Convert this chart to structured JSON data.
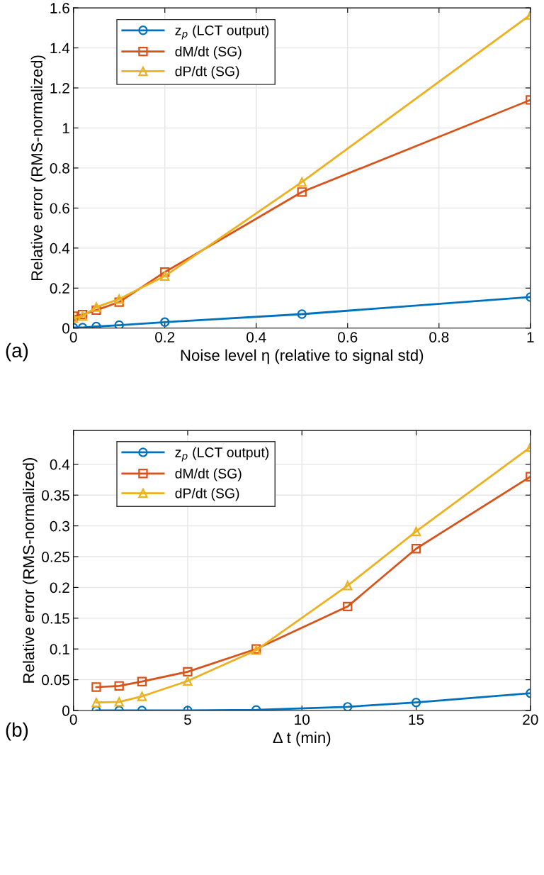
{
  "chart_data": [
    {
      "type": "line",
      "xlabel": "Noise level η (relative to signal std)",
      "ylabel": "Relative error (RMS-normalized)",
      "x": [
        0,
        0.02,
        0.05,
        0.1,
        0.2,
        0.5,
        1
      ],
      "xlim": [
        0,
        1
      ],
      "ylim": [
        0,
        1.6
      ],
      "xticks": [
        0,
        0.2,
        0.4,
        0.6,
        0.8,
        1
      ],
      "yticks": [
        0,
        0.2,
        0.4,
        0.6,
        0.8,
        1,
        1.2,
        1.4,
        1.6
      ],
      "grid": true,
      "legend": "top left",
      "line_style": "solid",
      "annotations": [
        "(a)"
      ],
      "series": [
        {
          "name": "z$_{p}$ (LCT output)",
          "color": "#0072bd",
          "marker": "circle",
          "values": [
            0.003,
            0.003,
            0.008,
            0.015,
            0.03,
            0.07,
            0.155
          ]
        },
        {
          "name": "dM/dt (SG)",
          "color": "#d95319",
          "marker": "square",
          "values": [
            0.06,
            0.068,
            0.09,
            0.13,
            0.28,
            0.68,
            1.14
          ]
        },
        {
          "name": "dP/dt (SG)",
          "color": "#edb120",
          "marker": "triangle",
          "values": [
            0.05,
            0.06,
            0.105,
            0.145,
            0.26,
            0.73,
            1.565
          ]
        }
      ]
    },
    {
      "type": "line",
      "xlabel": "Δ t (min)",
      "ylabel": "Relative error (RMS-normalized)",
      "x": [
        1,
        2,
        3,
        5,
        8,
        12,
        15,
        20
      ],
      "xlim": [
        0,
        20
      ],
      "ylim": [
        0,
        0.455
      ],
      "xticks": [
        0,
        5,
        10,
        15,
        20
      ],
      "yticks": [
        0,
        0.05,
        0.1,
        0.15,
        0.2,
        0.25,
        0.3,
        0.35,
        0.4
      ],
      "grid": true,
      "legend": "top left",
      "line_style": "solid",
      "annotations": [
        "(b)"
      ],
      "series": [
        {
          "name": "z$_{p}$ (LCT output)",
          "color": "#0072bd",
          "marker": "circle",
          "values": [
            0,
            0,
            0,
            0,
            0.001,
            0.006,
            0.013,
            0.028
          ]
        },
        {
          "name": "dM/dt (SG)",
          "color": "#d95319",
          "marker": "square",
          "values": [
            0.038,
            0.04,
            0.047,
            0.063,
            0.1,
            0.169,
            0.263,
            0.38
          ]
        },
        {
          "name": "dP/dt (SG)",
          "color": "#edb120",
          "marker": "triangle",
          "values": [
            0.013,
            0.014,
            0.023,
            0.048,
            0.098,
            0.203,
            0.291,
            0.428
          ]
        }
      ]
    }
  ]
}
